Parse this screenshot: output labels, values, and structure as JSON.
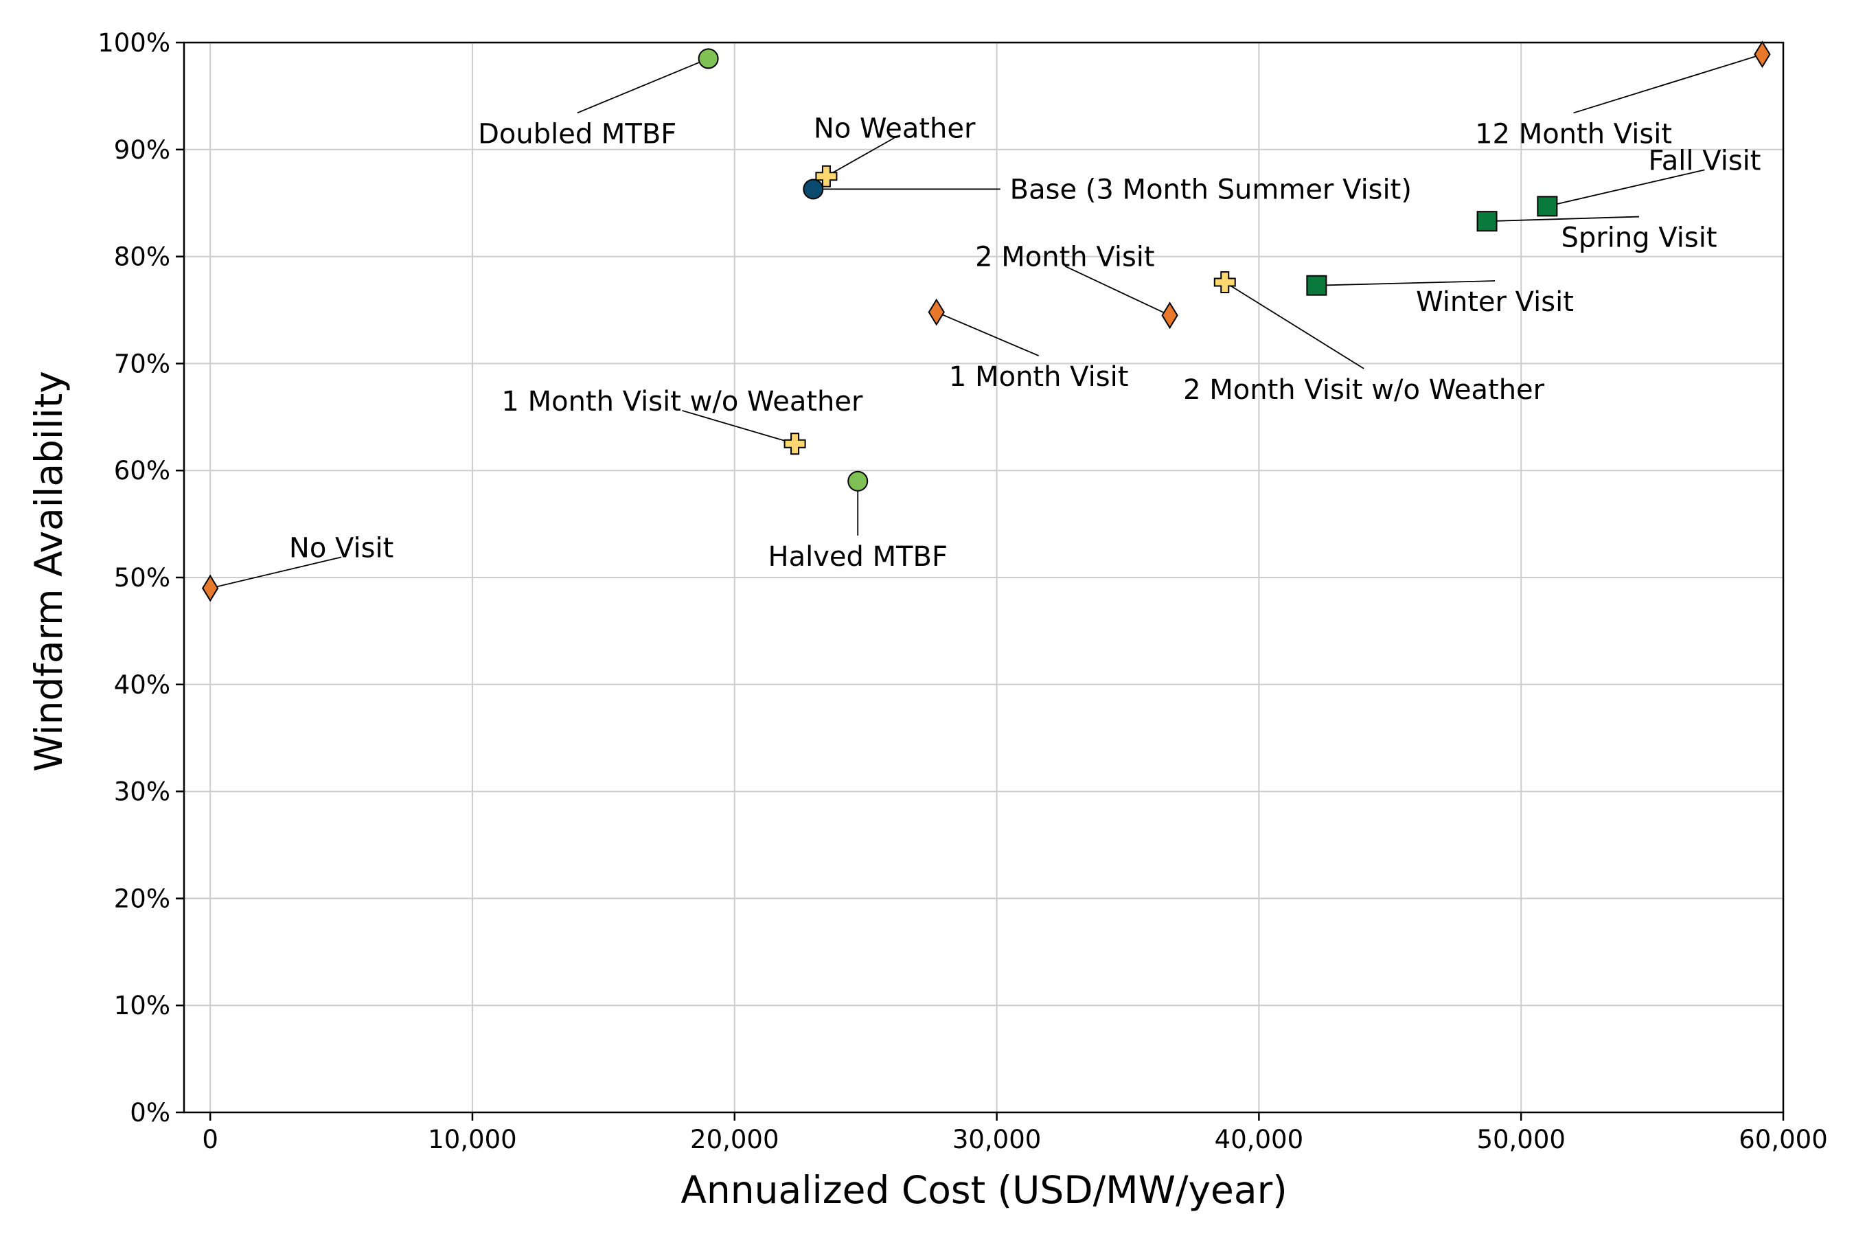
{
  "chart_data": {
    "type": "scatter",
    "title": "",
    "xlabel": "Annualized Cost (USD/MW/year)",
    "ylabel": "Windfarm Availability",
    "xlim": [
      -1000,
      60000
    ],
    "ylim": [
      0,
      100
    ],
    "x_ticks": [
      0,
      10000,
      20000,
      30000,
      40000,
      50000,
      60000
    ],
    "x_tick_labels": [
      "0",
      "10,000",
      "20,000",
      "30,000",
      "40,000",
      "50,000",
      "60,000"
    ],
    "y_ticks": [
      0,
      10,
      20,
      30,
      40,
      50,
      60,
      70,
      80,
      90,
      100
    ],
    "y_tick_labels": [
      "0%",
      "10%",
      "20%",
      "30%",
      "40%",
      "50%",
      "60%",
      "70%",
      "80%",
      "90%",
      "100%"
    ],
    "grid": true,
    "legend": "none",
    "colors": {
      "base": "#0b4a6f",
      "visit": "#e8782b",
      "no_weather": "#fdd871",
      "mtbf": "#7fc154",
      "season": "#0a7a3c"
    },
    "points": [
      {
        "label": "Base (3 Month Summer Visit)",
        "x": 23000,
        "y": 86.3,
        "marker": "circle",
        "color_key": "base",
        "label_x": 30500,
        "label_y": 86.3,
        "anchor": "start"
      },
      {
        "label": "No Weather",
        "x": 23500,
        "y": 87.5,
        "marker": "plus",
        "color_key": "no_weather",
        "label_x": 26100,
        "label_y": 92.0,
        "anchor": "middle"
      },
      {
        "label": "Doubled MTBF",
        "x": 19000,
        "y": 98.5,
        "marker": "circle",
        "color_key": "mtbf",
        "label_x": 14000,
        "label_y": 91.5,
        "anchor": "middle"
      },
      {
        "label": "Halved MTBF",
        "x": 24700,
        "y": 59.0,
        "marker": "circle",
        "color_key": "mtbf",
        "label_x": 24700,
        "label_y": 52.0,
        "anchor": "middle"
      },
      {
        "label": "No Visit",
        "x": 0,
        "y": 49.0,
        "marker": "diamond",
        "color_key": "visit",
        "label_x": 5000,
        "label_y": 52.8,
        "anchor": "middle"
      },
      {
        "label": "1 Month Visit",
        "x": 27700,
        "y": 74.8,
        "marker": "diamond",
        "color_key": "visit",
        "label_x": 31600,
        "label_y": 68.8,
        "anchor": "middle"
      },
      {
        "label": "2 Month Visit",
        "x": 36600,
        "y": 74.5,
        "marker": "diamond",
        "color_key": "visit",
        "label_x": 32600,
        "label_y": 80.0,
        "anchor": "middle"
      },
      {
        "label": "12 Month Visit",
        "x": 59200,
        "y": 98.9,
        "marker": "diamond",
        "color_key": "visit",
        "label_x": 52000,
        "label_y": 91.5,
        "anchor": "middle"
      },
      {
        "label": "1 Month Visit w/o Weather",
        "x": 22300,
        "y": 62.5,
        "marker": "plus",
        "color_key": "no_weather",
        "label_x": 18000,
        "label_y": 66.5,
        "anchor": "middle"
      },
      {
        "label": "2 Month Visit w/o Weather",
        "x": 38700,
        "y": 77.6,
        "marker": "plus",
        "color_key": "no_weather",
        "label_x": 44000,
        "label_y": 67.6,
        "anchor": "middle"
      },
      {
        "label": "Winter Visit",
        "x": 42200,
        "y": 77.3,
        "marker": "square",
        "color_key": "season",
        "label_x": 49000,
        "label_y": 75.8,
        "anchor": "middle"
      },
      {
        "label": "Spring Visit",
        "x": 48700,
        "y": 83.3,
        "marker": "square",
        "color_key": "season",
        "label_x": 54500,
        "label_y": 81.8,
        "anchor": "middle"
      },
      {
        "label": "Fall Visit",
        "x": 51000,
        "y": 84.7,
        "marker": "square",
        "color_key": "season",
        "label_x": 57000,
        "label_y": 89.0,
        "anchor": "middle"
      }
    ]
  }
}
